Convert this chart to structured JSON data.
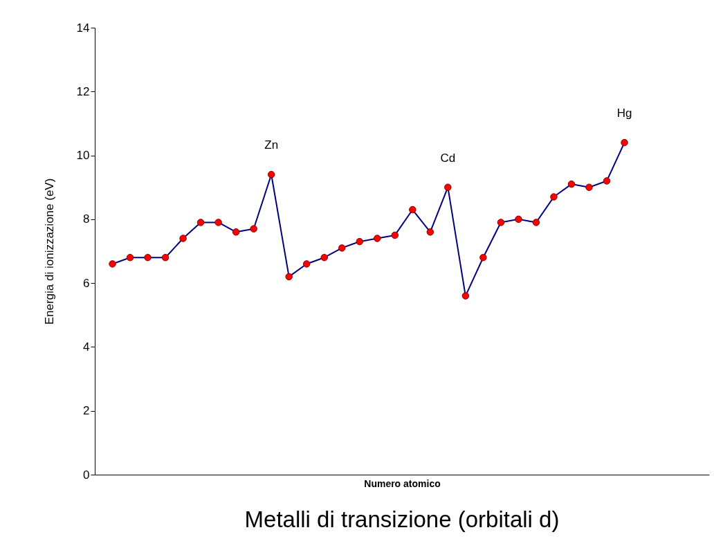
{
  "chart_data": {
    "type": "line",
    "title": "Metalli di transizione (orbitali d)",
    "xlabel": "Numero atomico",
    "ylabel": "Energia di ionizzazione (eV)",
    "categories": [
      null,
      null,
      null,
      null,
      null,
      null,
      null,
      null,
      null,
      null,
      null,
      null,
      null,
      null,
      null,
      null,
      null,
      null,
      null,
      null,
      null,
      null,
      null,
      null,
      null,
      null,
      null,
      null,
      null,
      null
    ],
    "series": [
      {
        "color": "#000080",
        "values": [
          6.6,
          6.8,
          6.8,
          6.8,
          7.4,
          7.9,
          7.9,
          7.6,
          7.7,
          9.4,
          6.2,
          6.6,
          6.8,
          7.1,
          7.3,
          7.4,
          7.5,
          8.3,
          7.6,
          9.0,
          5.6,
          6.8,
          7.9,
          8.0,
          7.9,
          8.7,
          9.1,
          9.0,
          9.2,
          10.4
        ]
      }
    ],
    "marker": "circle",
    "line_style": "solid",
    "tick_labels": "y",
    "ylim": [
      0,
      14
    ],
    "yticks": [
      0,
      2,
      4,
      6,
      8,
      10,
      12,
      14
    ],
    "annotations": [
      {
        "text": "Zn",
        "y": 9.4
      },
      {
        "text": "Cd",
        "y": 9.0
      },
      {
        "text": "Hg",
        "y": 10.4
      }
    ]
  }
}
